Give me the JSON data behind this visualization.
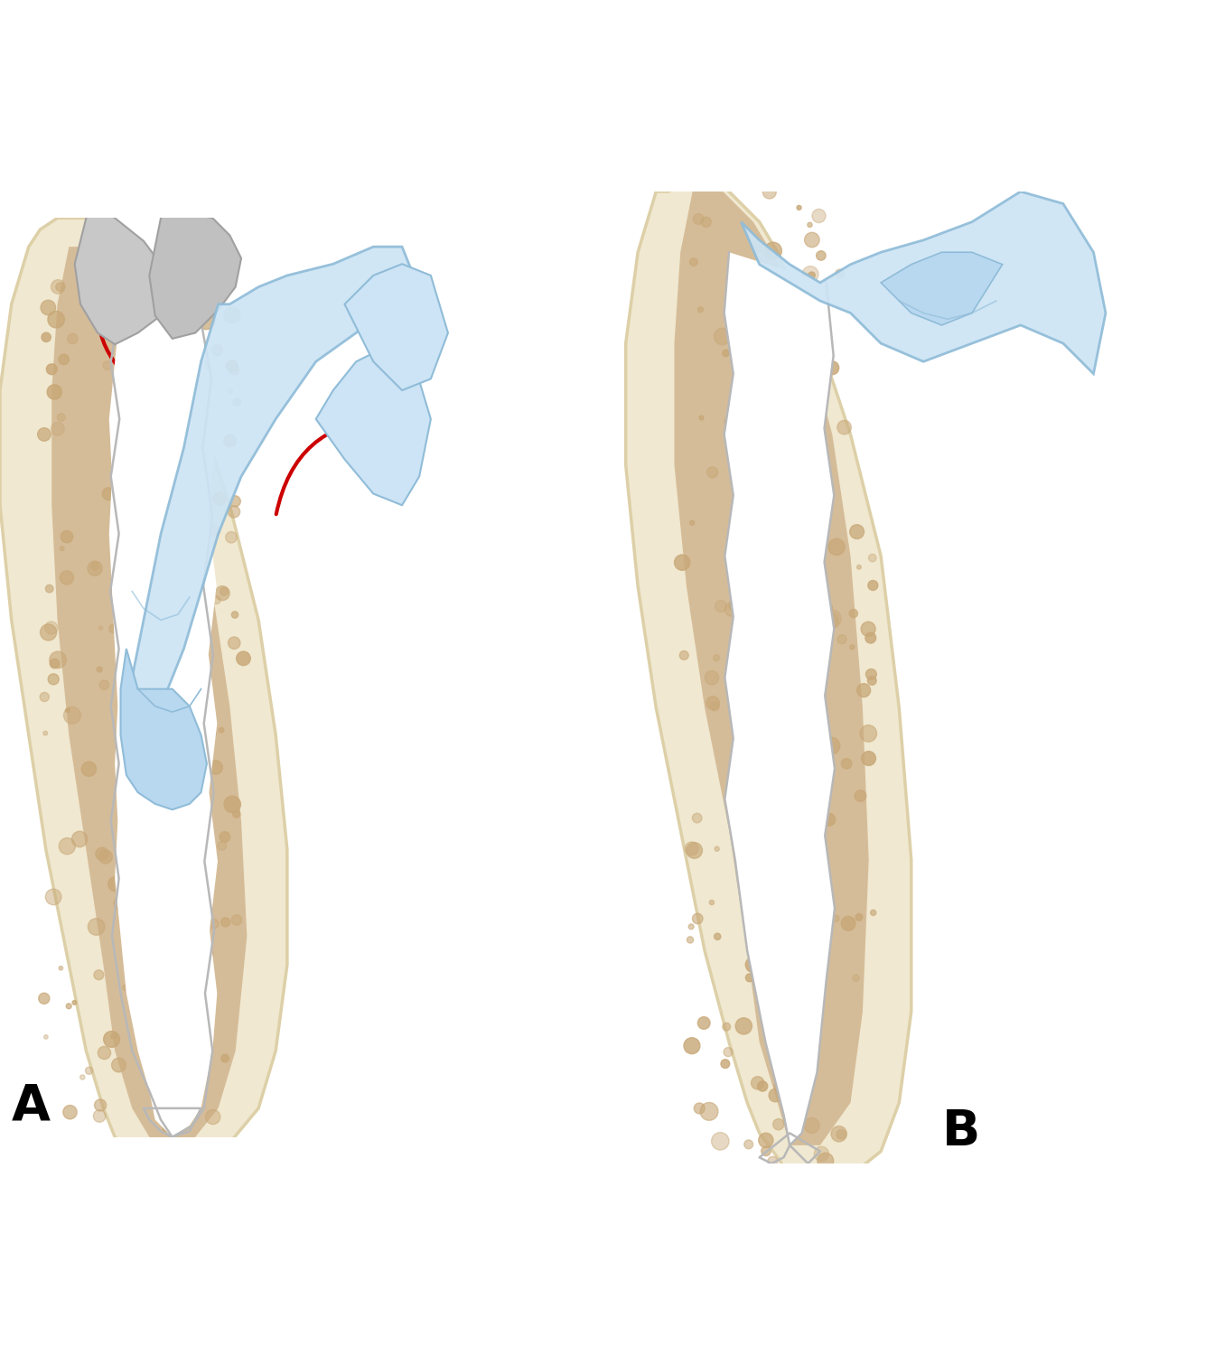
{
  "title": "",
  "label_A": "A",
  "label_B": "B",
  "background_color": "#ffffff",
  "bone_fill": "#f0e8d0",
  "bone_outer": "#ddd0a8",
  "bone_inner_fill": "#c8a878",
  "cancellous_color": "#c0986a",
  "cement_fill": "#f0f0f0",
  "cement_stroke": "#b8b8b8",
  "glove_fill": "#cce4f5",
  "glove_stroke": "#90bcd8",
  "finger_fill": "#b8d8f0",
  "arrow_color": "#cc0000",
  "label_fontsize": 40,
  "label_weight": "bold"
}
